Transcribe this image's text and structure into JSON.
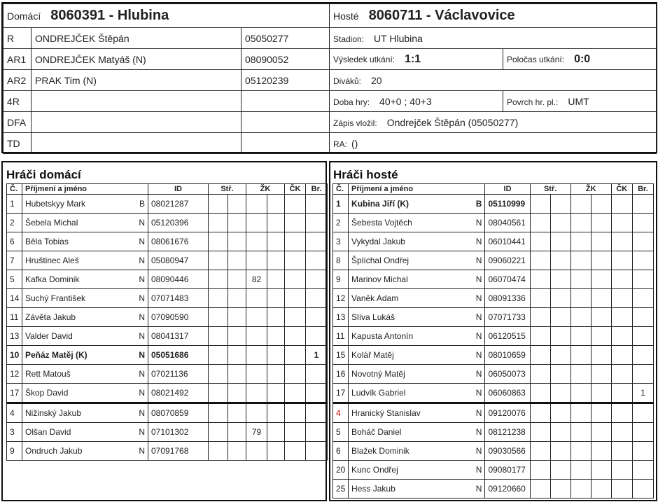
{
  "home": {
    "label": "Domácí",
    "team": "8060391 - Hlubina"
  },
  "away": {
    "label": "Hosté",
    "team": "8060711 - Václavovice"
  },
  "officials": [
    {
      "role": "R",
      "name": "ONDREJČEK Štěpán",
      "id": "05050277"
    },
    {
      "role": "AR1",
      "name": "ONDREJČEK Matyáš (N)",
      "id": "08090052"
    },
    {
      "role": "AR2",
      "name": "PRAK Tim (N)",
      "id": "05120239"
    },
    {
      "role": "4R",
      "name": "",
      "id": ""
    },
    {
      "role": "DFA",
      "name": "",
      "id": ""
    },
    {
      "role": "TD",
      "name": "",
      "id": ""
    }
  ],
  "info": {
    "stadium_label": "Stadion:",
    "stadium": "UT Hlubina",
    "result_label": "Výsledek utkání:",
    "result": "1:1",
    "half_label": "Poločas utkání:",
    "half": "0:0",
    "spectators_label": "Diváků:",
    "spectators": "20",
    "time_label": "Doba hry:",
    "time": "40+0 ; 40+3",
    "surface_label": "Povrch hr. pl.:",
    "surface": "UMT",
    "entered_label": "Zápis vložil:",
    "entered": "Ondrejček Štěpán (05050277)",
    "ra_label": "RA:",
    "ra": "()"
  },
  "columns": {
    "no": "Č.",
    "name": "Příjmení a jméno",
    "id": "ID",
    "str": "Stř.",
    "zk": "ŽK",
    "ck": "ČK",
    "br": "Br."
  },
  "home_players_title": "Hráči domácí",
  "away_players_title": "Hráči hosté",
  "home_players": [
    {
      "no": "1",
      "name": "Hubetskyy Mark",
      "flag": "B",
      "id": "08021287"
    },
    {
      "no": "2",
      "name": "Šebela Michal",
      "flag": "N",
      "id": "05120396"
    },
    {
      "no": "6",
      "name": "Běla Tobias",
      "flag": "N",
      "id": "08061676"
    },
    {
      "no": "7",
      "name": "Hruštinec Aleš",
      "flag": "N",
      "id": "05080947"
    },
    {
      "no": "5",
      "name": "Kafka Dominik",
      "flag": "N",
      "id": "08090446",
      "zk1": "82"
    },
    {
      "no": "14",
      "name": "Suchý František",
      "flag": "N",
      "id": "07071483"
    },
    {
      "no": "11",
      "name": "Závěta Jakub",
      "flag": "N",
      "id": "07090590"
    },
    {
      "no": "13",
      "name": "Valder David",
      "flag": "N",
      "id": "08041317"
    },
    {
      "no": "10",
      "name": "Peňáz Matěj (K)",
      "flag": "N",
      "id": "05051686",
      "br": "1",
      "captain": true
    },
    {
      "no": "12",
      "name": "Rett Matouš",
      "flag": "N",
      "id": "07021136"
    },
    {
      "no": "17",
      "name": "Škop David",
      "flag": "N",
      "id": "08021492"
    },
    {
      "no": "4",
      "name": "Nižinský Jakub",
      "flag": "N",
      "id": "08070859",
      "sub": true
    },
    {
      "no": "3",
      "name": "Olšan David",
      "flag": "N",
      "id": "07101302",
      "zk1": "79",
      "sub": true
    },
    {
      "no": "9",
      "name": "Ondruch Jakub",
      "flag": "N",
      "id": "07091768",
      "sub": true
    }
  ],
  "away_players": [
    {
      "no": "1",
      "name": "Kubina Jiří (K)",
      "flag": "B",
      "id": "05110999",
      "captain": true
    },
    {
      "no": "2",
      "name": "Šebesta Vojtěch",
      "flag": "N",
      "id": "08040561"
    },
    {
      "no": "3",
      "name": "Vykydal Jakub",
      "flag": "N",
      "id": "06010441"
    },
    {
      "no": "8",
      "name": "Šplíchal Ondřej",
      "flag": "N",
      "id": "09060221"
    },
    {
      "no": "9",
      "name": "Marinov Michal",
      "flag": "N",
      "id": "06070474"
    },
    {
      "no": "12",
      "name": "Vaněk Adam",
      "flag": "N",
      "id": "08091336"
    },
    {
      "no": "13",
      "name": "Slíva Lukáš",
      "flag": "N",
      "id": "07071733"
    },
    {
      "no": "11",
      "name": "Kapusta Antonín",
      "flag": "N",
      "id": "06120515"
    },
    {
      "no": "15",
      "name": "Kolář Matěj",
      "flag": "N",
      "id": "08010659"
    },
    {
      "no": "16",
      "name": "Novotný Matěj",
      "flag": "N",
      "id": "06050073"
    },
    {
      "no": "17",
      "name": "Ludvík Gabriel",
      "flag": "N",
      "id": "06060863",
      "br": "1"
    },
    {
      "no": "4",
      "name": "Hranický Stanislav",
      "flag": "N",
      "id": "09120076",
      "sub": true,
      "no_red": true
    },
    {
      "no": "5",
      "name": "Boháč Daniel",
      "flag": "N",
      "id": "08121238",
      "sub": true
    },
    {
      "no": "6",
      "name": "Blažek Dominik",
      "flag": "N",
      "id": "09030566",
      "sub": true
    },
    {
      "no": "20",
      "name": "Kunc Ondřej",
      "flag": "N",
      "id": "09080177",
      "sub": true
    },
    {
      "no": "25",
      "name": "Hess Jakub",
      "flag": "N",
      "id": "09120660",
      "sub": true
    }
  ],
  "colors": {
    "border": "#111111",
    "highlight_number": "#cc0000"
  }
}
